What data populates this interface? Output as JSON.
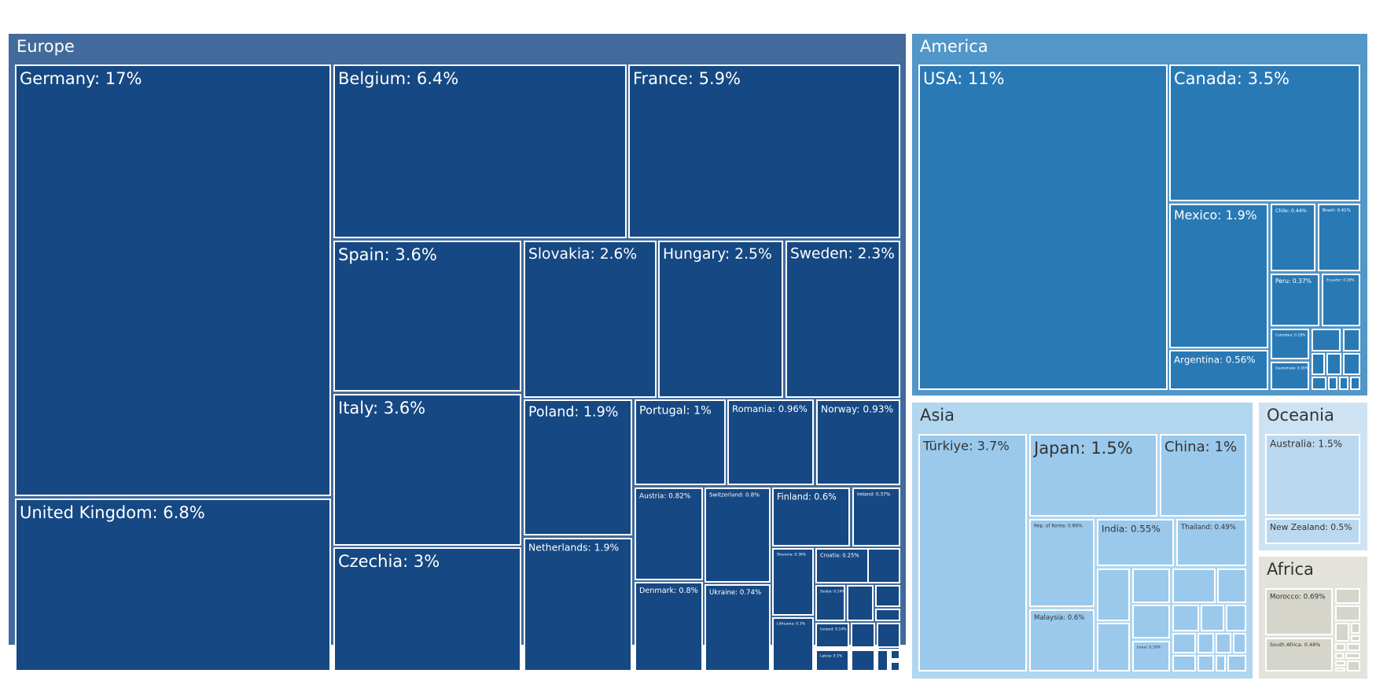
{
  "chart_data": {
    "type": "treemap",
    "colors": {
      "Europe": {
        "header": "#426b9c",
        "tile": "#164883",
        "text": "#ffffff"
      },
      "America": {
        "header": "#5396c8",
        "tile": "#2979b5",
        "text": "#ffffff"
      },
      "Asia": {
        "header": "#b0d6f0",
        "tile": "#9ac9ec",
        "text": "#333333"
      },
      "Oceania": {
        "header": "#cde3f4",
        "tile": "#bad9f0",
        "text": "#333333"
      },
      "Africa": {
        "header": "#e3e2db",
        "tile": "#d5d5cb",
        "text": "#333333"
      }
    },
    "regions": [
      {
        "name": "Europe",
        "label": "Europe",
        "items": [
          {
            "name": "Germany",
            "label": "Germany: 17%",
            "value": 17
          },
          {
            "name": "United Kingdom",
            "label": "United Kingdom: 6.8%",
            "value": 6.8
          },
          {
            "name": "Belgium",
            "label": "Belgium: 6.4%",
            "value": 6.4
          },
          {
            "name": "France",
            "label": "France: 5.9%",
            "value": 5.9
          },
          {
            "name": "Spain",
            "label": "Spain: 3.6%",
            "value": 3.6
          },
          {
            "name": "Italy",
            "label": "Italy: 3.6%",
            "value": 3.6
          },
          {
            "name": "Czechia",
            "label": "Czechia: 3%",
            "value": 3
          },
          {
            "name": "Slovakia",
            "label": "Slovakia: 2.6%",
            "value": 2.6
          },
          {
            "name": "Hungary",
            "label": "Hungary: 2.5%",
            "value": 2.5
          },
          {
            "name": "Sweden",
            "label": "Sweden: 2.3%",
            "value": 2.3
          },
          {
            "name": "Poland",
            "label": "Poland: 1.9%",
            "value": 1.9
          },
          {
            "name": "Netherlands",
            "label": "Netherlands: 1.9%",
            "value": 1.9
          },
          {
            "name": "Portugal",
            "label": "Portugal: 1%",
            "value": 1
          },
          {
            "name": "Romania",
            "label": "Romania: 0.96%",
            "value": 0.96
          },
          {
            "name": "Norway",
            "label": "Norway: 0.93%",
            "value": 0.93
          },
          {
            "name": "Austria",
            "label": "Austria: 0.82%",
            "value": 0.82
          },
          {
            "name": "Switzerland",
            "label": "Switzerland: 0.8%",
            "value": 0.8
          },
          {
            "name": "Denmark",
            "label": "Denmark: 0.8%",
            "value": 0.8
          },
          {
            "name": "Ukraine",
            "label": "Ukraine: 0.74%",
            "value": 0.74
          },
          {
            "name": "Finland",
            "label": "Finland: 0.6%",
            "value": 0.6
          },
          {
            "name": "Ireland",
            "label": "Ireland: 0.37%",
            "value": 0.37
          },
          {
            "name": "Slovenia",
            "label": "Slovenia: 0.36%",
            "value": 0.36
          },
          {
            "name": "Croatia",
            "label": "Croatia: 0.25%",
            "value": 0.25
          },
          {
            "name": "Lithuania",
            "label": "Lithuania: 0.3%",
            "value": 0.3
          },
          {
            "name": "Latvia",
            "label": "Latvia: 0.1%",
            "value": 0.1
          },
          {
            "name": "Iceland",
            "label": "Iceland: 0.14%",
            "value": 0.14
          },
          {
            "name": "Serbia",
            "label": "Serbia: 0.14%",
            "value": 0.14
          }
        ]
      },
      {
        "name": "America",
        "label": "America",
        "items": [
          {
            "name": "USA",
            "label": "USA: 11%",
            "value": 11
          },
          {
            "name": "Canada",
            "label": "Canada: 3.5%",
            "value": 3.5
          },
          {
            "name": "Mexico",
            "label": "Mexico: 1.9%",
            "value": 1.9
          },
          {
            "name": "Argentina",
            "label": "Argentina: 0.56%",
            "value": 0.56
          },
          {
            "name": "Chile",
            "label": "Chile: 0.44%",
            "value": 0.44
          },
          {
            "name": "Brazil",
            "label": "Brazil: 0.41%",
            "value": 0.41
          },
          {
            "name": "Peru",
            "label": "Peru: 0.37%",
            "value": 0.37
          },
          {
            "name": "Ecuador",
            "label": "Ecuador: 0.28%",
            "value": 0.28
          },
          {
            "name": "Colombia",
            "label": "Colombia: 0.18%",
            "value": 0.18
          },
          {
            "name": "Guatemala",
            "label": "Guatemala: 0.16%",
            "value": 0.16
          }
        ]
      },
      {
        "name": "Asia",
        "label": "Asia",
        "items": [
          {
            "name": "Türkiye",
            "label": "Türkiye: 3.7%",
            "value": 3.7
          },
          {
            "name": "Japan",
            "label": "Japan: 1.5%",
            "value": 1.5
          },
          {
            "name": "China",
            "label": "China: 1%",
            "value": 1
          },
          {
            "name": "Rep. of Korea",
            "label": "Rep. of Korea: 0.86%",
            "value": 0.86
          },
          {
            "name": "India",
            "label": "India: 0.55%",
            "value": 0.55
          },
          {
            "name": "Thailand",
            "label": "Thailand: 0.49%",
            "value": 0.49
          },
          {
            "name": "Malaysia",
            "label": "Malaysia: 0.6%",
            "value": 0.6
          },
          {
            "name": "Israel",
            "label": "Israel: 0.18%",
            "value": 0.18
          }
        ]
      },
      {
        "name": "Oceania",
        "label": "Oceania",
        "items": [
          {
            "name": "Australia",
            "label": "Australia: 1.5%",
            "value": 1.5
          },
          {
            "name": "New Zealand",
            "label": "New Zealand: 0.5%",
            "value": 0.5
          }
        ]
      },
      {
        "name": "Africa",
        "label": "Africa",
        "items": [
          {
            "name": "Morocco",
            "label": "Morocco: 0.69%",
            "value": 0.69
          },
          {
            "name": "South Africa",
            "label": "South Africa: 0.48%",
            "value": 0.48
          }
        ]
      }
    ]
  }
}
